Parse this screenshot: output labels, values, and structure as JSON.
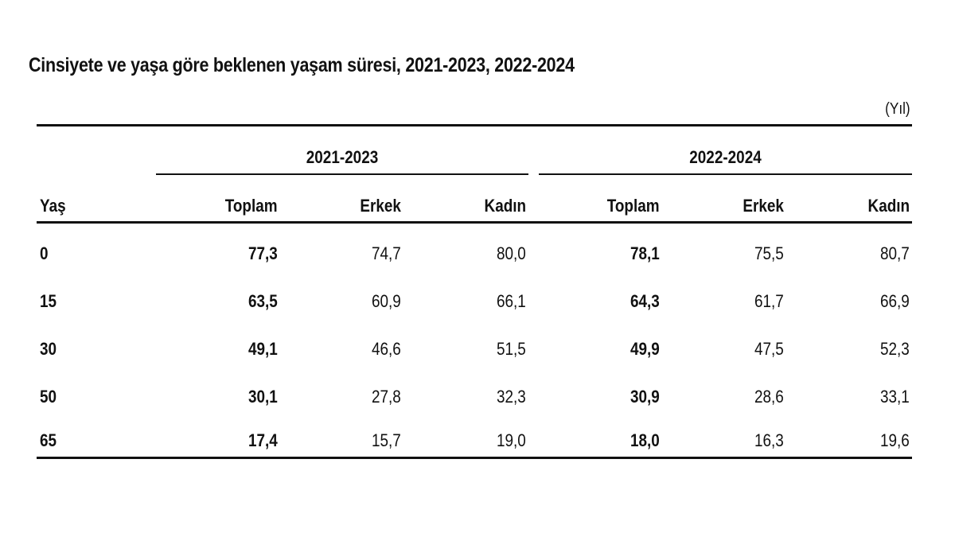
{
  "title": "Cinsiyete ve yaşa göre beklenen yaşam süresi, 2021-2023, 2022-2024",
  "unit": "(Yıl)",
  "table": {
    "groups": [
      "2021-2023",
      "2022-2024"
    ],
    "headers": [
      "Yaş",
      "Toplam",
      "Erkek",
      "Kadın",
      "Toplam",
      "Erkek",
      "Kadın"
    ],
    "rows": [
      [
        "0",
        "77,3",
        "74,7",
        "80,0",
        "78,1",
        "75,5",
        "80,7"
      ],
      [
        "15",
        "63,5",
        "60,9",
        "66,1",
        "64,3",
        "61,7",
        "66,9"
      ],
      [
        "30",
        "49,1",
        "46,6",
        "51,5",
        "49,9",
        "47,5",
        "52,3"
      ],
      [
        "50",
        "30,1",
        "27,8",
        "32,3",
        "30,9",
        "28,6",
        "33,1"
      ],
      [
        "65",
        "17,4",
        "15,7",
        "19,0",
        "18,0",
        "16,3",
        "19,6"
      ]
    ]
  }
}
